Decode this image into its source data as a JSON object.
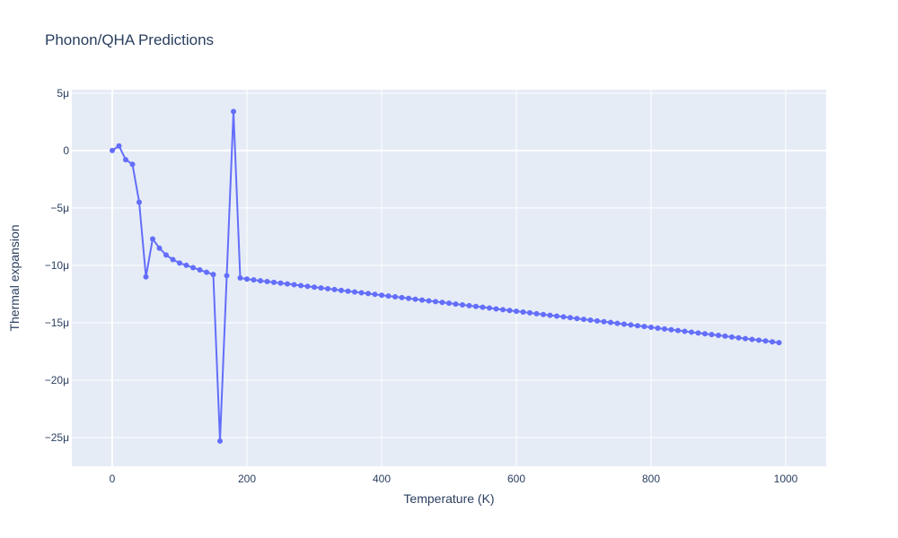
{
  "chart_data": {
    "type": "line",
    "title": "Phonon/QHA Predictions",
    "xlabel": "Temperature (K)",
    "ylabel": "Thermal expansion",
    "xlim": [
      -60,
      1060
    ],
    "ylim": [
      -27.5,
      5.3
    ],
    "y_unit_suffix": "μ",
    "x_ticks": [
      0,
      200,
      400,
      600,
      800,
      1000
    ],
    "x_tick_labels": [
      "0",
      "200",
      "400",
      "600",
      "800",
      "1000"
    ],
    "y_ticks": [
      5,
      0,
      -5,
      -10,
      -15,
      -20,
      -25
    ],
    "y_tick_labels": [
      "5μ",
      "0",
      "−5μ",
      "−10μ",
      "−15μ",
      "−20μ",
      "−25μ"
    ],
    "grid": true,
    "colors": {
      "plot_bg": "#e5ecf6",
      "grid": "#ffffff",
      "line": "#636efa",
      "text": "#2a3f5f"
    },
    "series": [
      {
        "x": [
          0,
          10,
          20,
          30,
          40,
          50,
          60,
          70,
          80,
          90,
          100,
          110,
          120,
          130,
          140,
          150,
          160,
          170,
          180,
          190,
          200,
          210,
          220,
          230,
          240,
          250,
          260,
          270,
          280,
          290,
          300,
          310,
          320,
          330,
          340,
          350,
          360,
          370,
          380,
          390,
          400,
          410,
          420,
          430,
          440,
          450,
          460,
          470,
          480,
          490,
          500,
          510,
          520,
          530,
          540,
          550,
          560,
          570,
          580,
          590,
          600,
          610,
          620,
          630,
          640,
          650,
          660,
          670,
          680,
          690,
          700,
          710,
          720,
          730,
          740,
          750,
          760,
          770,
          780,
          790,
          800,
          810,
          820,
          830,
          840,
          850,
          860,
          870,
          880,
          890,
          900,
          910,
          920,
          930,
          940,
          950,
          960,
          970,
          980,
          990
        ],
        "y": [
          0,
          0.4,
          -0.8,
          -1.2,
          -4.5,
          -11.0,
          -7.7,
          -8.5,
          -9.1,
          -9.5,
          -9.8,
          -10.0,
          -10.2,
          -10.4,
          -10.6,
          -10.8,
          -25.3,
          -10.9,
          3.4,
          -11.1,
          -11.2,
          -11.27,
          -11.34,
          -11.41,
          -11.48,
          -11.55,
          -11.62,
          -11.69,
          -11.76,
          -11.83,
          -11.9,
          -11.97,
          -12.04,
          -12.11,
          -12.18,
          -12.25,
          -12.32,
          -12.39,
          -12.46,
          -12.53,
          -12.6,
          -12.67,
          -12.74,
          -12.81,
          -12.88,
          -12.95,
          -13.02,
          -13.09,
          -13.16,
          -13.23,
          -13.3,
          -13.37,
          -13.44,
          -13.51,
          -13.58,
          -13.65,
          -13.72,
          -13.79,
          -13.86,
          -13.93,
          -14.0,
          -14.07,
          -14.14,
          -14.21,
          -14.28,
          -14.35,
          -14.42,
          -14.49,
          -14.56,
          -14.63,
          -14.7,
          -14.77,
          -14.84,
          -14.91,
          -14.98,
          -15.05,
          -15.12,
          -15.19,
          -15.26,
          -15.33,
          -15.4,
          -15.47,
          -15.54,
          -15.61,
          -15.68,
          -15.75,
          -15.82,
          -15.89,
          -15.96,
          -16.03,
          -16.1,
          -16.17,
          -16.24,
          -16.31,
          -16.38,
          -16.45,
          -16.52,
          -16.59,
          -16.66,
          -16.73
        ]
      }
    ]
  }
}
